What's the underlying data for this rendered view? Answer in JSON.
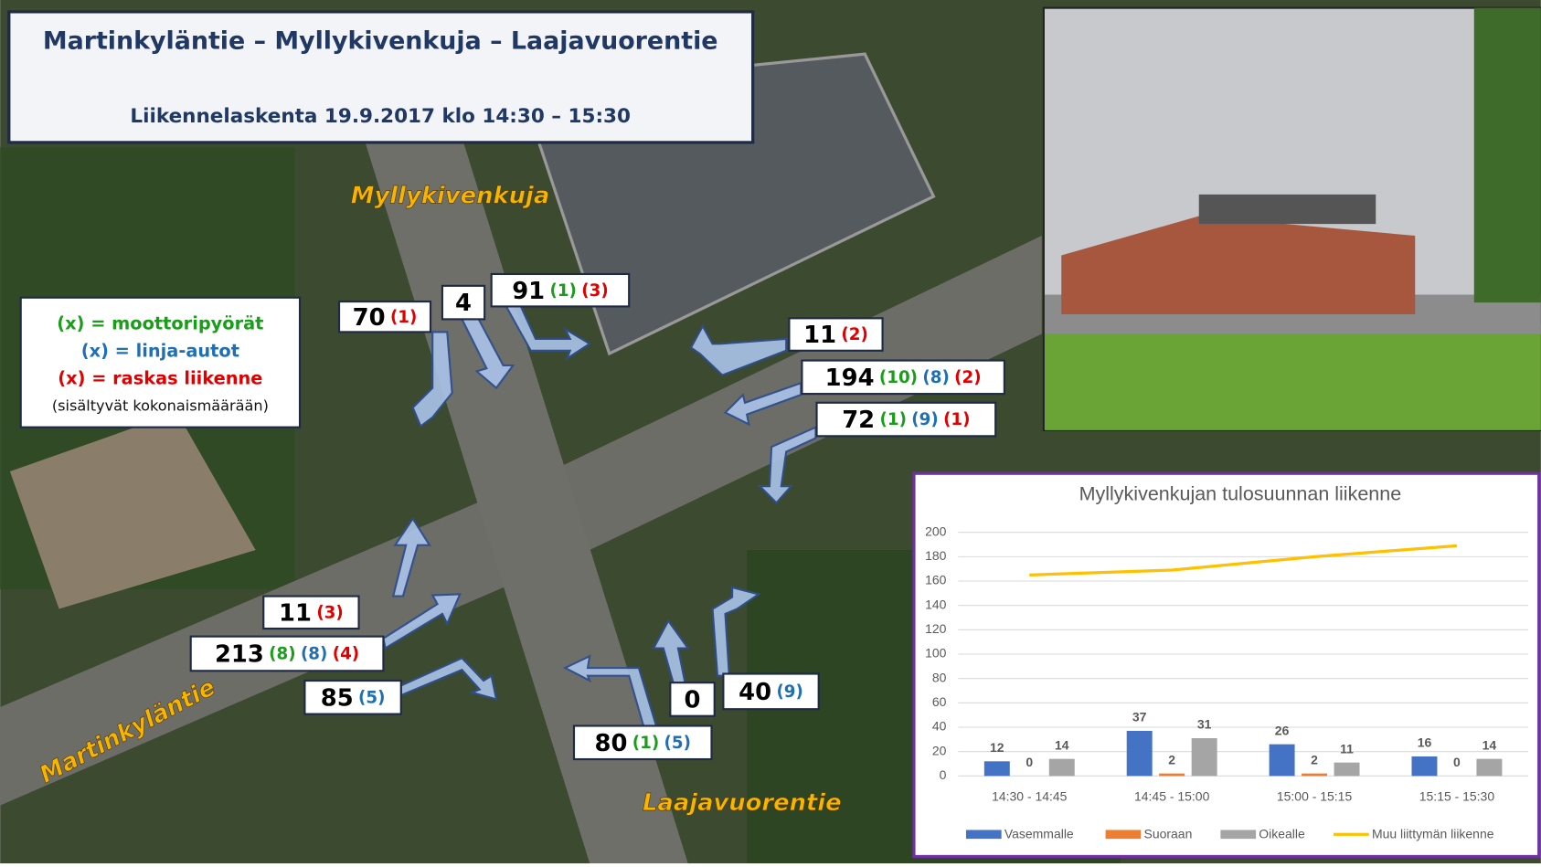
{
  "header": {
    "title": "Martinkyläntie – Myllykivenkuja – Laajavuorentie",
    "subtitle": "Liikennelaskenta 19.9.2017 klo 14:30 – 15:30"
  },
  "streets": [
    "Myllykivenkuja",
    "Martinkyläntie",
    "Laajavuorentie"
  ],
  "legend": [
    {
      "text": "(x) = moottoripyörät",
      "color": "#1a9e1a"
    },
    {
      "text": "(x) = linja-autot",
      "color": "#1f6fb5"
    },
    {
      "text": "(x) = raskas liikenne",
      "color": "#e00000"
    },
    {
      "text": "(sisältyvät kokonaismäärään)",
      "color": "#111111"
    }
  ],
  "counts": [
    {
      "total": 70,
      "parts": [
        {
          "value": 1,
          "label": "(1)",
          "color": "#e00000"
        }
      ]
    },
    {
      "total": 4,
      "parts": []
    },
    {
      "total": 91,
      "parts": [
        {
          "value": 1,
          "label": "(1)",
          "color": "#1a9e1a"
        },
        {
          "value": 3,
          "label": "(3)",
          "color": "#e00000"
        }
      ]
    },
    {
      "total": 11,
      "parts": [
        {
          "value": 2,
          "label": "(2)",
          "color": "#e00000"
        }
      ]
    },
    {
      "total": 194,
      "parts": [
        {
          "value": 10,
          "label": "(10)",
          "color": "#1a9e1a"
        },
        {
          "value": 8,
          "label": "(8)",
          "color": "#1f6fb5"
        },
        {
          "value": 2,
          "label": "(2)",
          "color": "#e00000"
        }
      ]
    },
    {
      "total": 72,
      "parts": [
        {
          "value": 1,
          "label": "(1)",
          "color": "#1a9e1a"
        },
        {
          "value": 9,
          "label": "(9)",
          "color": "#1f6fb5"
        },
        {
          "value": 1,
          "label": "(1)",
          "color": "#e00000"
        }
      ]
    },
    {
      "total": 11,
      "parts": [
        {
          "value": 3,
          "label": "(3)",
          "color": "#e00000"
        }
      ]
    },
    {
      "total": 213,
      "parts": [
        {
          "value": 8,
          "label": "(8)",
          "color": "#1a9e1a"
        },
        {
          "value": 8,
          "label": "(8)",
          "color": "#1f6fb5"
        },
        {
          "value": 4,
          "label": "(4)",
          "color": "#e00000"
        }
      ]
    },
    {
      "total": 85,
      "parts": [
        {
          "value": 5,
          "label": "(5)",
          "color": "#1f6fb5"
        }
      ]
    },
    {
      "total": 0,
      "parts": []
    },
    {
      "total": 40,
      "parts": [
        {
          "value": 9,
          "label": "(9)",
          "color": "#1f6fb5"
        }
      ]
    },
    {
      "total": 80,
      "parts": [
        {
          "value": 1,
          "label": "(1)",
          "color": "#1a9e1a"
        },
        {
          "value": 5,
          "label": "(5)",
          "color": "#1f6fb5"
        }
      ]
    }
  ],
  "chart_data": {
    "type": "bar",
    "title": "Myllykivenkujan tulosuunnan liikenne",
    "categories": [
      "14:30 - 14:45",
      "14:45 - 15:00",
      "15:00 - 15:15",
      "15:15 - 15:30"
    ],
    "series": [
      {
        "name": "Vasemmalle",
        "color": "#4472c4",
        "values": [
          12,
          37,
          26,
          16
        ]
      },
      {
        "name": "Suoraan",
        "color": "#ed7d31",
        "values": [
          0,
          2,
          2,
          0
        ]
      },
      {
        "name": "Oikealle",
        "color": "#a5a5a5",
        "values": [
          14,
          31,
          11,
          14
        ]
      },
      {
        "name": "Muu liittymän liikenne",
        "color": "#ffc000",
        "type": "line",
        "values": [
          165,
          169,
          180,
          189
        ]
      }
    ],
    "ylim": [
      0,
      200
    ],
    "yticks": [
      0,
      20,
      40,
      60,
      80,
      100,
      120,
      140,
      160,
      180,
      200
    ],
    "grid": true
  }
}
